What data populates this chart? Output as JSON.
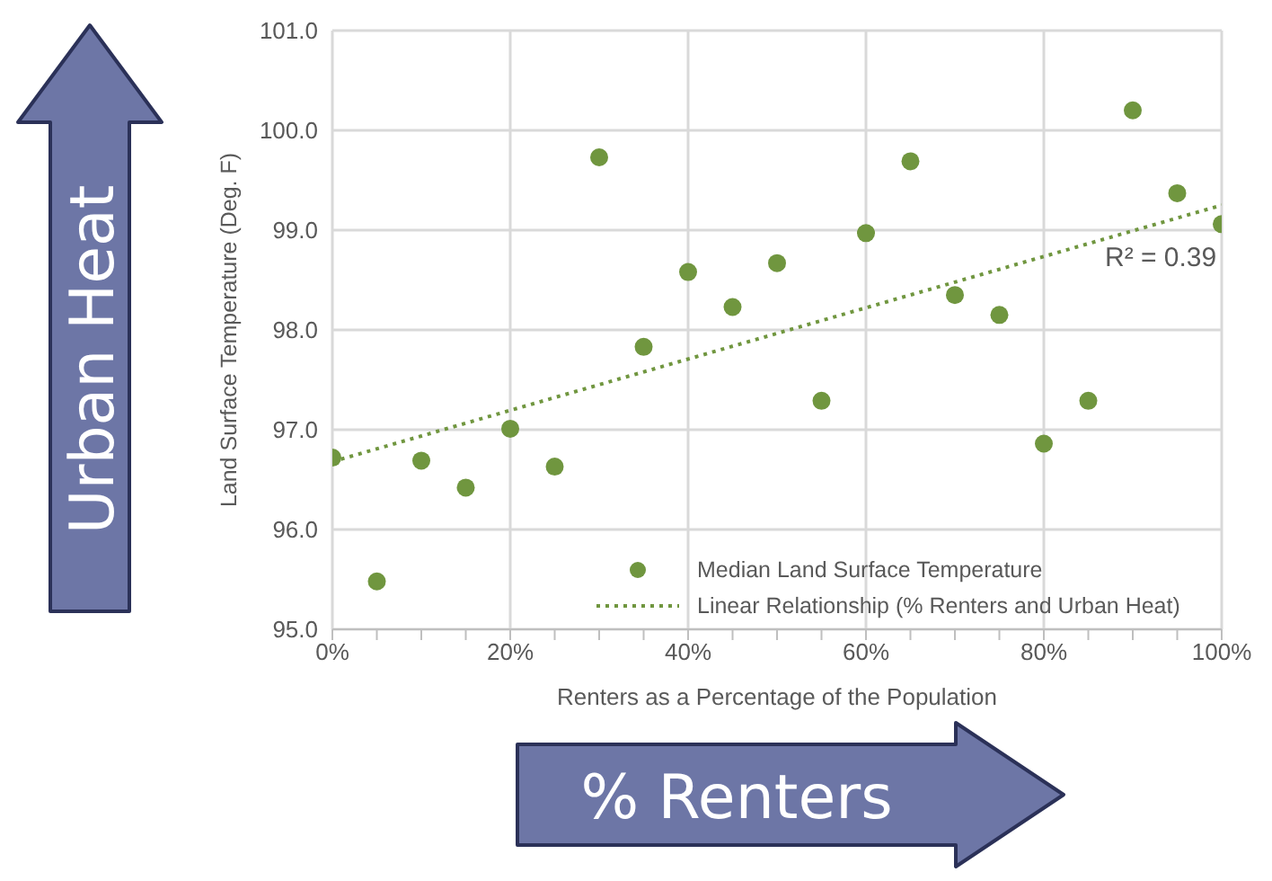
{
  "chart_data": {
    "type": "scatter",
    "xlabel": "Renters as a Percentage of the Population",
    "ylabel": "Land Surface Temperature (Deg. F)",
    "xlim": [
      0,
      100
    ],
    "xticks": [
      {
        "value": 0,
        "label": "0%"
      },
      {
        "value": 5,
        "label": null
      },
      {
        "value": 10,
        "label": null
      },
      {
        "value": 15,
        "label": null
      },
      {
        "value": 20,
        "label": "20%"
      },
      {
        "value": 25,
        "label": null
      },
      {
        "value": 30,
        "label": null
      },
      {
        "value": 35,
        "label": null
      },
      {
        "value": 40,
        "label": "40%"
      },
      {
        "value": 45,
        "label": null
      },
      {
        "value": 50,
        "label": null
      },
      {
        "value": 55,
        "label": null
      },
      {
        "value": 60,
        "label": "60%"
      },
      {
        "value": 65,
        "label": null
      },
      {
        "value": 70,
        "label": null
      },
      {
        "value": 75,
        "label": null
      },
      {
        "value": 80,
        "label": "80%"
      },
      {
        "value": 85,
        "label": null
      },
      {
        "value": 90,
        "label": null
      },
      {
        "value": 95,
        "label": null
      },
      {
        "value": 100,
        "label": "100%"
      }
    ],
    "ylim": [
      95,
      101
    ],
    "yticks": [
      {
        "value": 95,
        "label": "95.0"
      },
      {
        "value": 96,
        "label": "96.0"
      },
      {
        "value": 97,
        "label": "97.0"
      },
      {
        "value": 98,
        "label": "98.0"
      },
      {
        "value": 99,
        "label": "99.0"
      },
      {
        "value": 100,
        "label": "100.0"
      },
      {
        "value": 101,
        "label": "101.0"
      }
    ],
    "grid": true,
    "legend": "bottom right",
    "series": [
      {
        "name": "Median Land Surface Temperature",
        "color": "#70963f",
        "marker": "circle",
        "x": [
          0,
          5,
          10,
          15,
          20,
          25,
          30,
          35,
          40,
          45,
          50,
          55,
          60,
          65,
          70,
          75,
          80,
          85,
          90,
          95,
          100
        ],
        "values": [
          96.72,
          95.48,
          96.69,
          96.42,
          97.01,
          96.63,
          99.73,
          97.83,
          98.58,
          98.23,
          98.67,
          97.29,
          98.97,
          99.69,
          98.35,
          98.15,
          96.86,
          97.29,
          100.2,
          99.37,
          99.06
        ]
      },
      {
        "name": "Linear Relationship (% Renters and Urban Heat)",
        "type": "line",
        "color": "#70963f",
        "marker": "none",
        "line_style": "dotted",
        "x": [
          0,
          100
        ],
        "values": [
          96.68,
          99.25
        ]
      }
    ],
    "annotations": [
      "R² = 0.39",
      "Urban Heat",
      "% Renters"
    ]
  }
}
